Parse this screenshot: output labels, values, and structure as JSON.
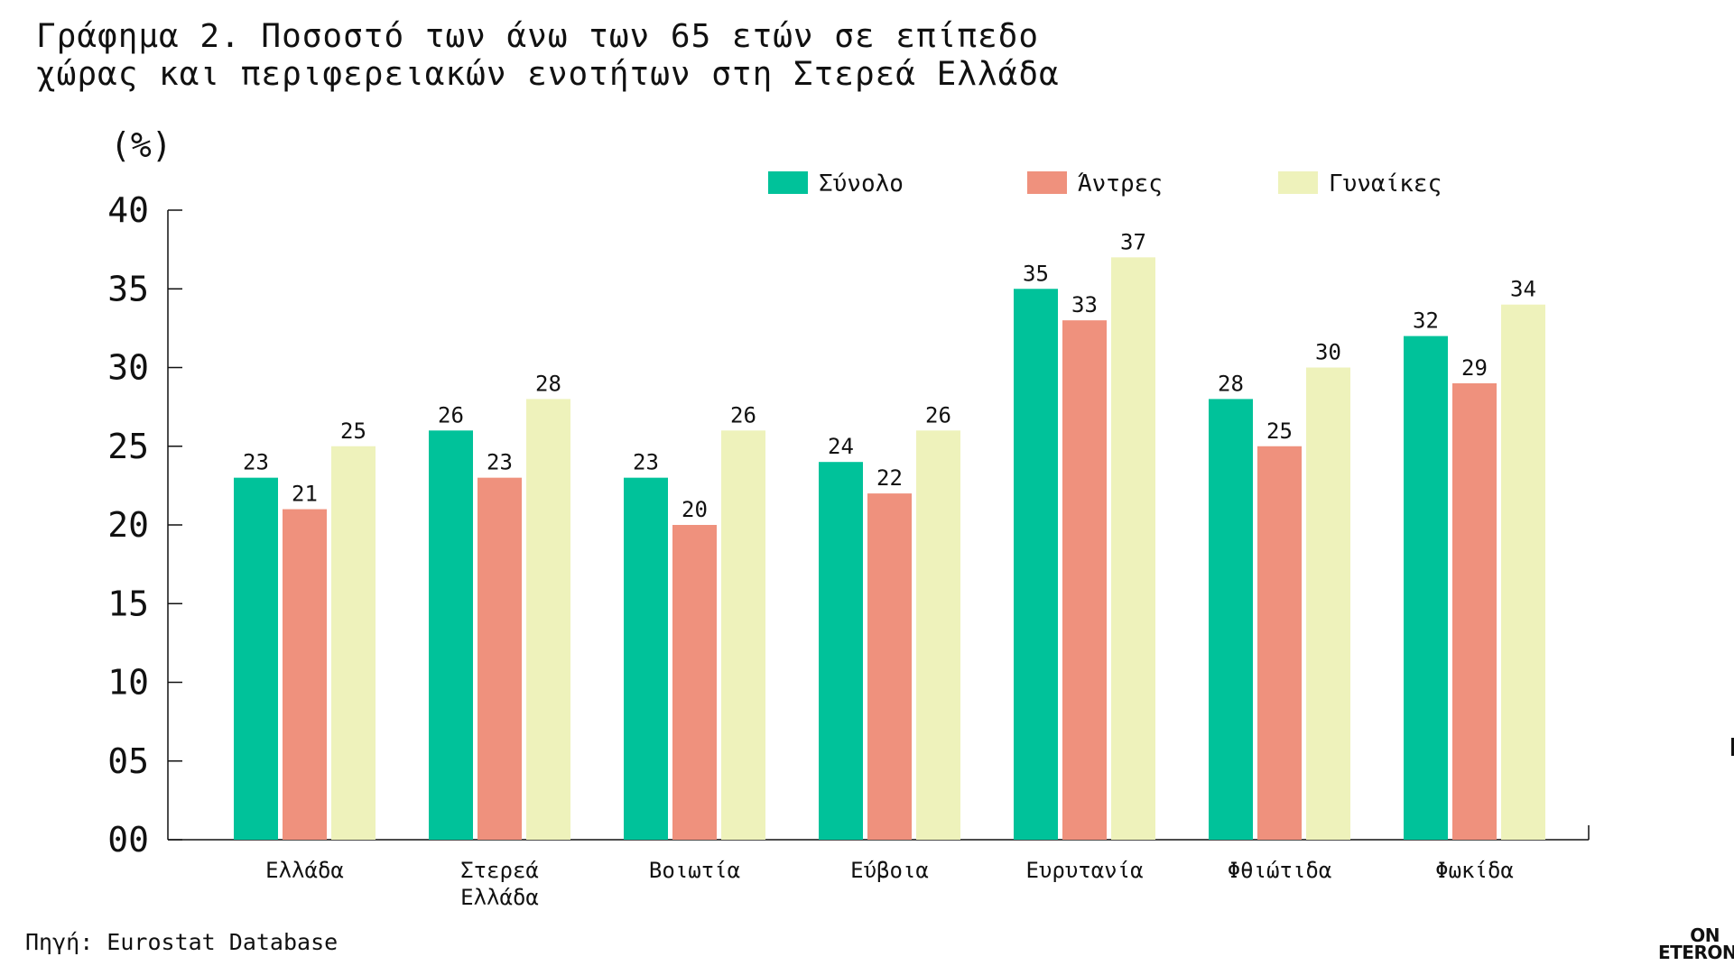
{
  "title_line1": "Γράφημα 2. Ποσοστό των άνω των 65 ετών σε επίπεδο",
  "title_line2": "χώρας και περιφερειακών ενοτήτων στη Στερεά Ελλάδα",
  "source": "Πηγή: Eurostat Database",
  "logo": {
    "top": "ON",
    "bottom": "ETERON"
  },
  "chart_data": {
    "type": "bar",
    "unit_label": "(%)",
    "categories": [
      [
        "Ελλάδα"
      ],
      [
        "Στερεά",
        "Ελλάδα"
      ],
      [
        "Βοιωτία"
      ],
      [
        "Εύβοια"
      ],
      [
        "Ευρυτανία"
      ],
      [
        "Φθιώτιδα"
      ],
      [
        "Φωκίδα"
      ]
    ],
    "series": [
      {
        "name": "Σύνολο",
        "color": "#00c29a",
        "values": [
          23,
          26,
          23,
          24,
          35,
          28,
          32
        ]
      },
      {
        "name": "Άντρες",
        "color": "#ef917d",
        "values": [
          21,
          23,
          20,
          22,
          33,
          25,
          29
        ]
      },
      {
        "name": "Γυναίκες",
        "color": "#eef2bb",
        "values": [
          25,
          28,
          26,
          26,
          37,
          30,
          34
        ]
      }
    ],
    "yticks": [
      "00",
      "05",
      "10",
      "15",
      "20",
      "25",
      "30",
      "35",
      "40"
    ],
    "ylim": [
      0,
      40
    ],
    "legend_position": "top-right",
    "grid": false
  }
}
